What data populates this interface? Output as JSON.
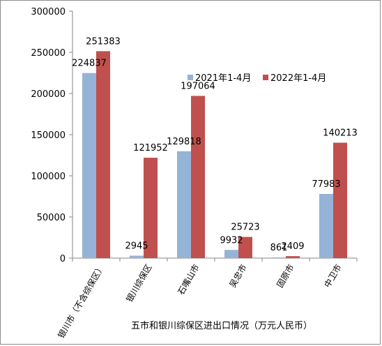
{
  "chart_data": {
    "type": "bar",
    "title": "五市和银川综保区进出口情况（万元人民币）",
    "categories": [
      "银川市（不含综保区）",
      "银川综保区",
      "石嘴山市",
      "吴忠市",
      "固原市",
      "中卫市"
    ],
    "series": [
      {
        "name": "2021年1-4月",
        "color": "#95b3d7",
        "values": [
          224837,
          2945,
          129818,
          9932,
          861,
          77983
        ]
      },
      {
        "name": "2022年1-4月",
        "color": "#c0504d",
        "values": [
          251383,
          121952,
          197064,
          25723,
          2409,
          140213
        ]
      }
    ],
    "ylim": [
      0,
      300000
    ],
    "yticks": [
      0,
      50000,
      100000,
      150000,
      200000,
      250000,
      300000
    ],
    "grid": false,
    "legend": "top-right"
  }
}
